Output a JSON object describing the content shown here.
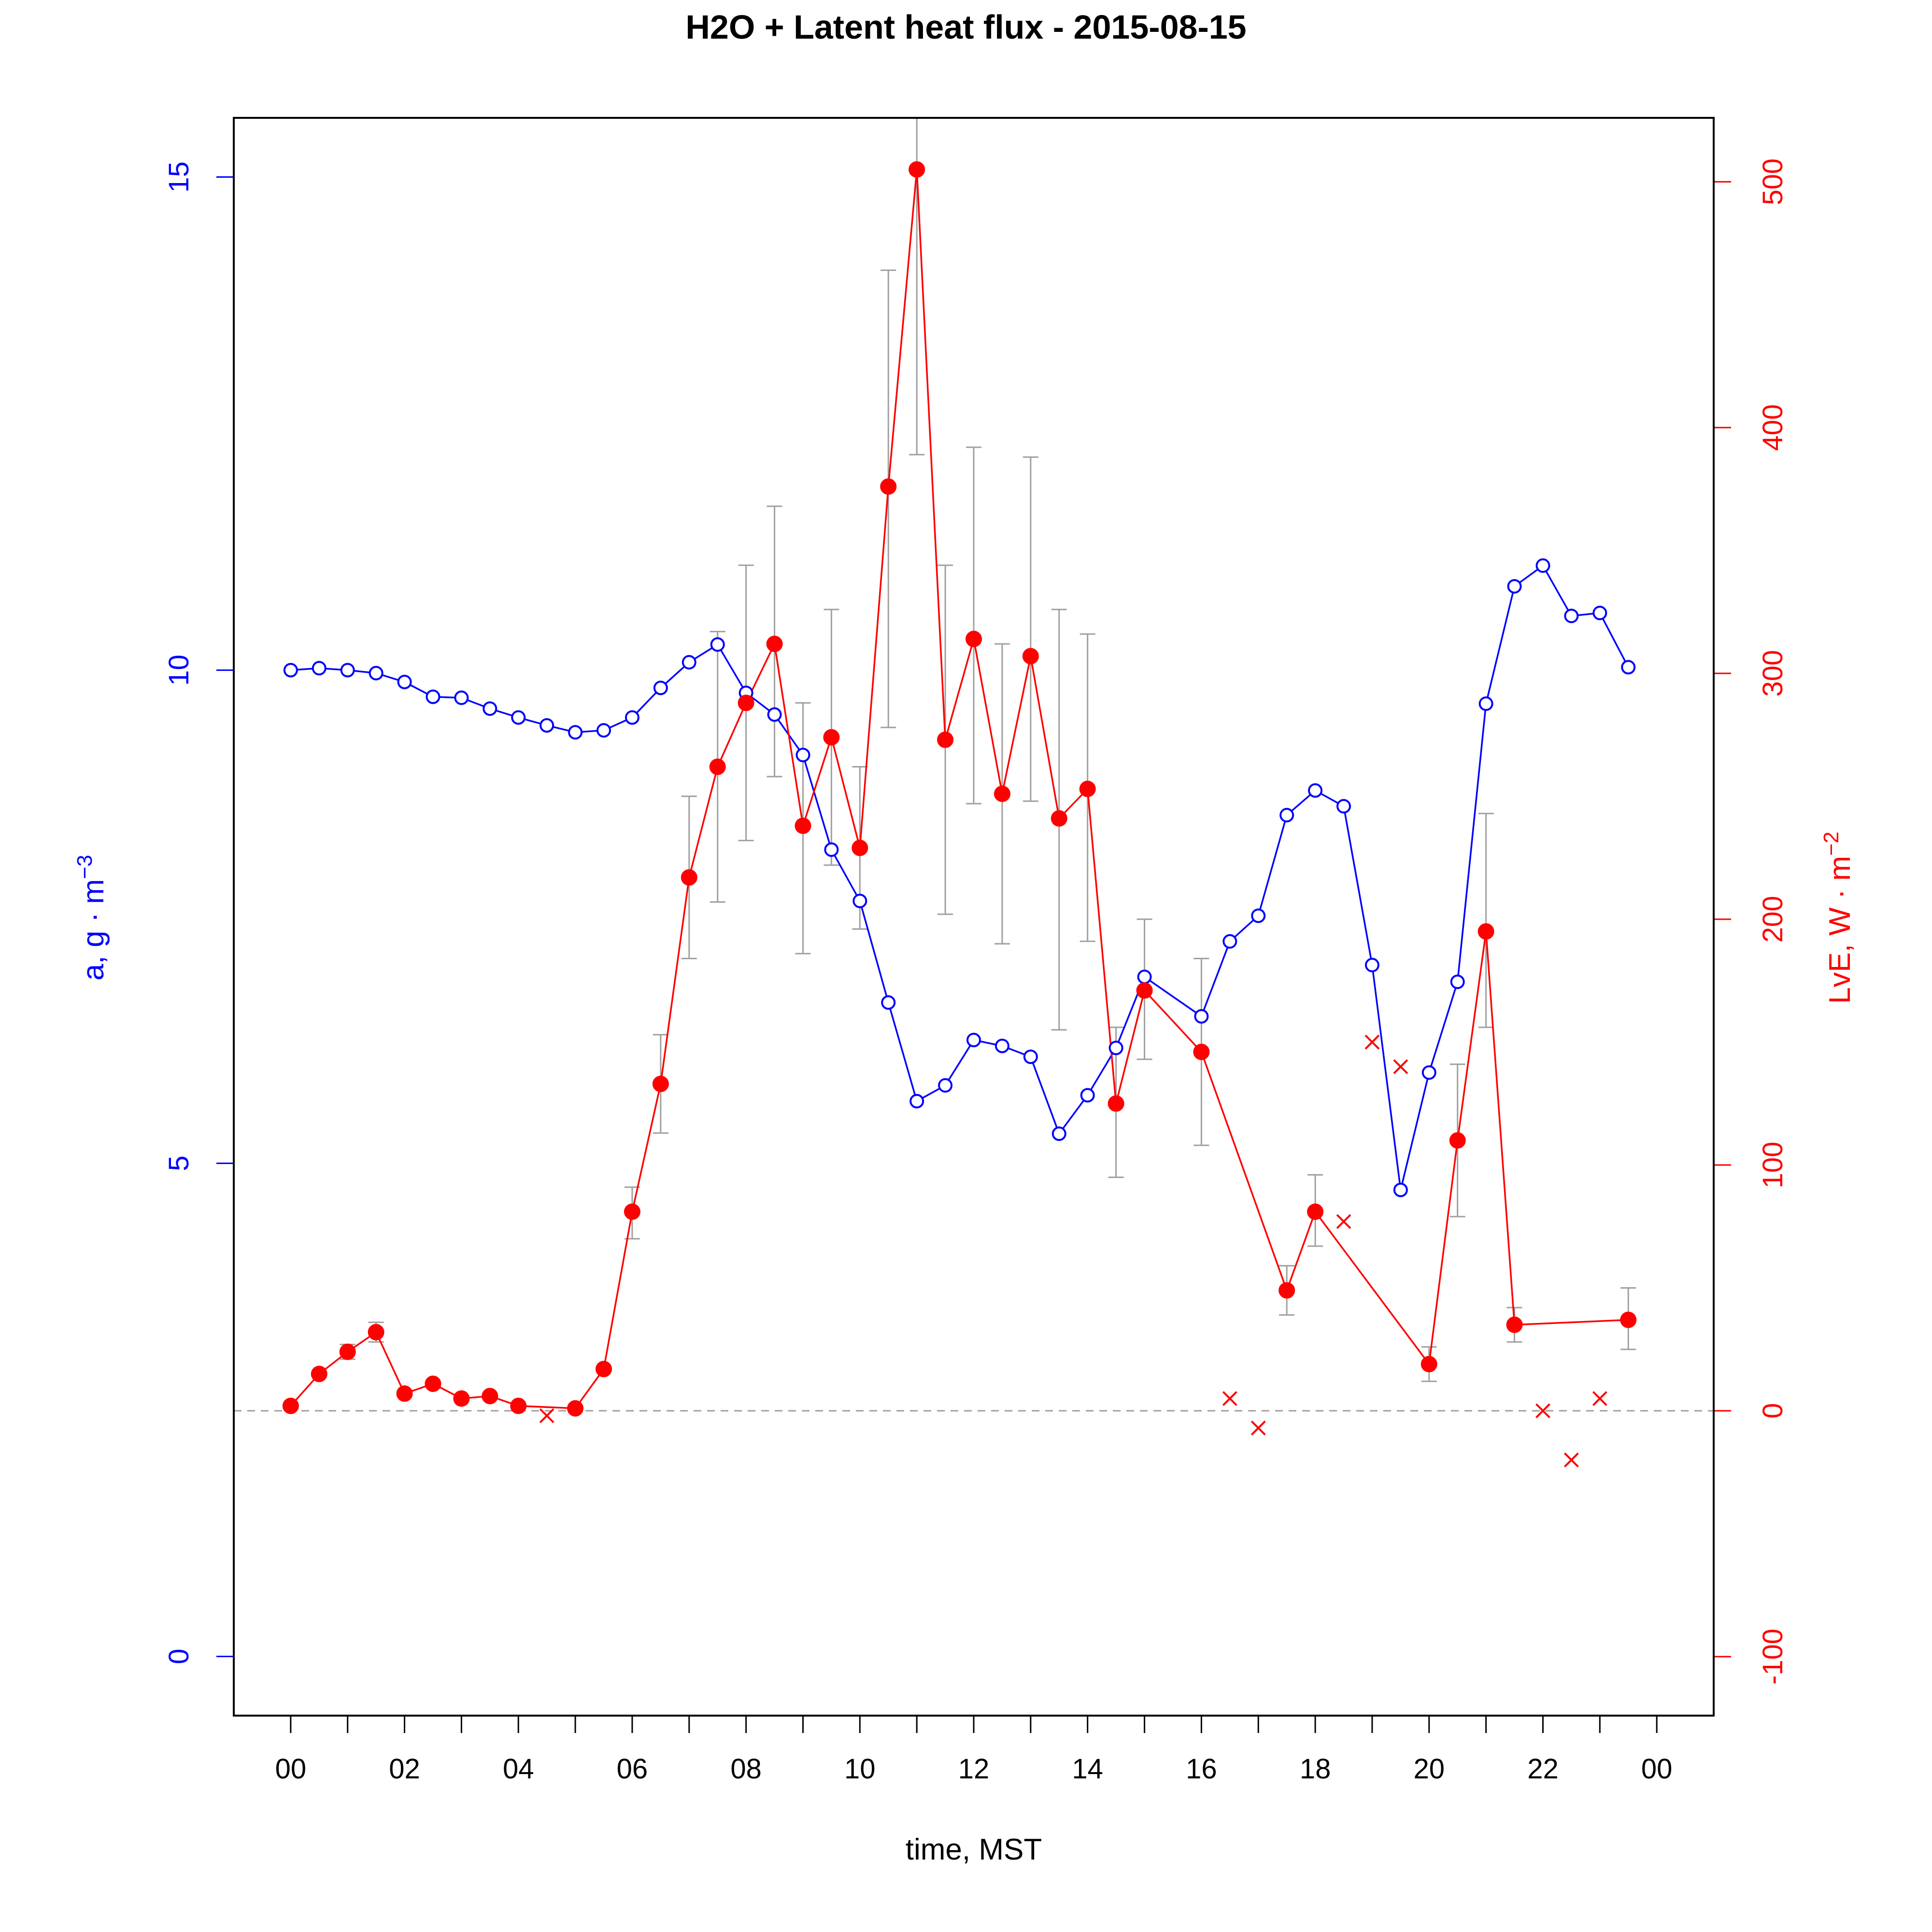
{
  "chart_data": {
    "type": "line",
    "title": "H2O + Latent heat flux -  2015-08-15",
    "xlabel": "time, MST",
    "ylabel_left": "a, g · m",
    "ylabel_left_exp": "−3",
    "ylabel_right": "LvE, W · m",
    "ylabel_right_exp": "−2",
    "x_tick_labels": [
      "00",
      "02",
      "04",
      "06",
      "08",
      "10",
      "12",
      "14",
      "16",
      "18",
      "20",
      "22",
      "00"
    ],
    "x_tick_hours": [
      0,
      2,
      4,
      6,
      8,
      10,
      12,
      14,
      16,
      18,
      20,
      22,
      24
    ],
    "x_range_hours": [
      -1.0,
      25.0
    ],
    "y_left_ticks": [
      "0",
      "5",
      "10",
      "15"
    ],
    "y_left_range": [
      -0.6,
      15.6
    ],
    "y_right_ticks": [
      "-100",
      "0",
      "100",
      "200",
      "300",
      "400",
      "500"
    ],
    "y_right_range": [
      -124,
      526
    ],
    "zero_line_lve": 0,
    "colors": {
      "h2o": "#0000ff",
      "lve": "#ff0000",
      "errorbar": "#a0a0a0",
      "zero_line": "#a0a0a0",
      "axes": "#000000"
    },
    "series": [
      {
        "name": "",
        "axis": "left",
        "marker": "open-circle",
        "color": "#0000ff",
        "x": [
          0,
          0.5,
          1,
          1.5,
          2,
          2.5,
          3,
          3.5,
          4,
          4.5,
          5,
          5.5,
          6,
          6.5,
          7,
          7.5,
          8,
          8.5,
          9,
          9.5,
          10,
          10.5,
          11,
          11.5,
          12,
          12.5,
          13,
          13.5,
          14,
          14.5,
          15,
          16,
          16.5,
          17,
          17.5,
          18,
          18.5,
          19,
          19.5,
          20,
          20.5,
          21,
          21.5,
          22,
          22.5,
          23,
          23.5
        ],
        "y": [
          10.0,
          10.02,
          10.0,
          9.97,
          9.88,
          9.73,
          9.72,
          9.61,
          9.52,
          9.44,
          9.37,
          9.39,
          9.52,
          9.82,
          10.08,
          10.26,
          9.77,
          9.55,
          9.14,
          8.18,
          7.66,
          6.63,
          5.63,
          5.79,
          6.25,
          6.19,
          6.08,
          5.3,
          5.69,
          6.17,
          6.89,
          6.49,
          7.25,
          7.51,
          8.53,
          8.78,
          8.62,
          7.01,
          4.73,
          5.92,
          6.84,
          9.66,
          10.85,
          11.06,
          10.55,
          10.58,
          10.03
        ]
      },
      {
        "name": "",
        "axis": "right",
        "marker": "filled-circle",
        "color": "#ff0000",
        "x": [
          0,
          0.5,
          1,
          1.5,
          2,
          2.5,
          3,
          3.5,
          4,
          5,
          5.5,
          6,
          6.5,
          7,
          7.5,
          8,
          8.5,
          9,
          9.5,
          10,
          10.5,
          11,
          11.5,
          12,
          12.5,
          13,
          13.5,
          14,
          14.5,
          15,
          16,
          17.5,
          18,
          20,
          20.5,
          21,
          21.5,
          23.5
        ],
        "y": [
          2,
          15,
          24,
          32,
          7,
          11,
          5,
          6,
          2,
          1,
          17,
          81,
          133,
          217,
          262,
          288,
          312,
          238,
          274,
          229,
          376,
          505,
          273,
          314,
          251,
          307,
          241,
          253,
          125,
          171,
          146,
          49,
          81,
          19,
          110,
          195,
          35,
          37
        ],
        "err_low": [
          null,
          null,
          21,
          28,
          null,
          null,
          null,
          null,
          null,
          null,
          null,
          70,
          113,
          184,
          207,
          232,
          258,
          186,
          222,
          196,
          278,
          389,
          202,
          247,
          190,
          248,
          155,
          191,
          95,
          143,
          108,
          39,
          67,
          12,
          79,
          156,
          28,
          25
        ],
        "err_high": [
          null,
          null,
          27,
          36,
          null,
          null,
          null,
          null,
          null,
          null,
          null,
          91,
          153,
          250,
          317,
          344,
          368,
          288,
          326,
          262,
          464,
          580,
          344,
          392,
          312,
          388,
          326,
          316,
          156,
          200,
          184,
          59,
          96,
          26,
          141,
          243,
          42,
          50
        ]
      },
      {
        "name": "",
        "axis": "right",
        "marker": "cross",
        "color": "#ff0000",
        "x": [
          4.5,
          16.5,
          17,
          18.5,
          19,
          19.5,
          22,
          22.5,
          23
        ],
        "y": [
          -2,
          5,
          -7,
          77,
          150,
          140,
          0,
          -20,
          5
        ]
      }
    ]
  }
}
